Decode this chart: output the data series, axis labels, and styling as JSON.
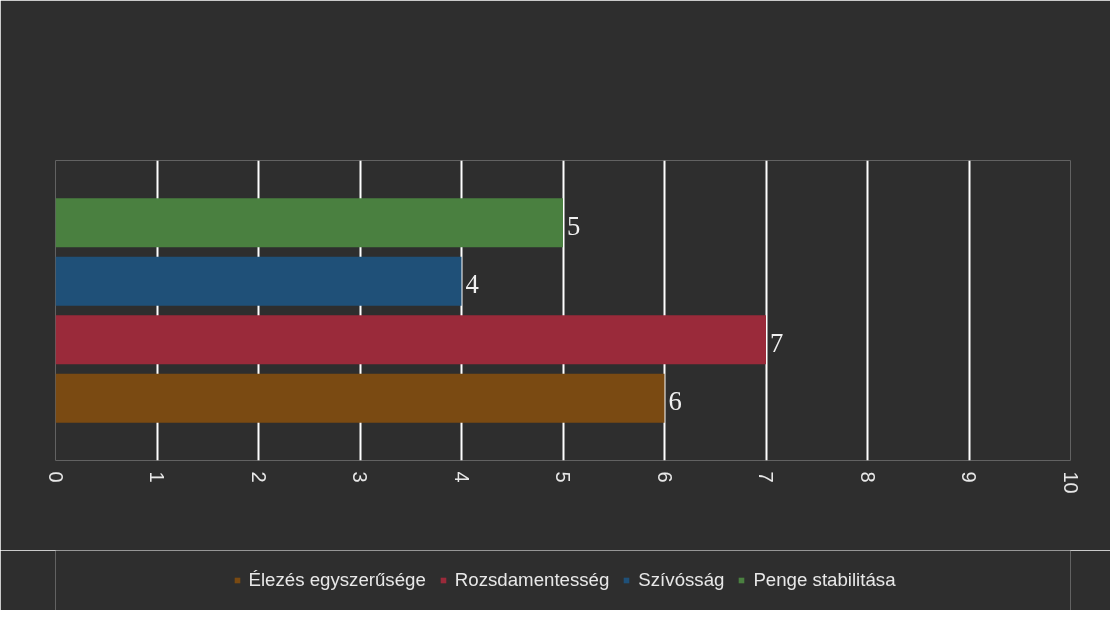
{
  "chart_data": {
    "type": "bar",
    "orientation": "horizontal",
    "categories": [
      null
    ],
    "series": [
      {
        "name": "Élezés egyszerűsége",
        "color": "#7a4a12",
        "values": [
          6
        ]
      },
      {
        "name": "Rozsdamentesség",
        "color": "#9a2a3a",
        "values": [
          7
        ]
      },
      {
        "name": "Szívósság",
        "color": "#1f5078",
        "values": [
          4
        ]
      },
      {
        "name": "Penge stabilitása",
        "color": "#4a8040",
        "values": [
          5
        ]
      }
    ],
    "xlim": [
      0,
      10
    ],
    "xticks": [
      0,
      1,
      2,
      3,
      4,
      5,
      6,
      7,
      8,
      9,
      10
    ],
    "grid": "x",
    "legend": "bottom",
    "data_labels": true
  }
}
